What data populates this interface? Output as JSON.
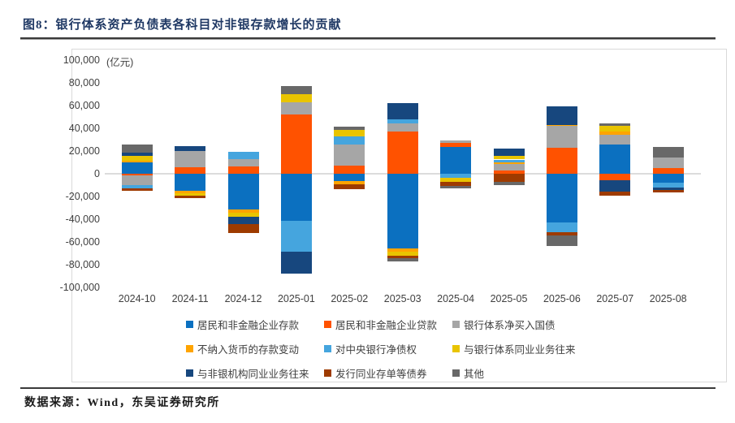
{
  "page": {
    "title": "图8：银行体系资产负债表各科目对非银存款增长的贡献",
    "source": "数据来源：Wind，东吴证券研究所",
    "unit_label": "(亿元)"
  },
  "chart_data": {
    "type": "bar",
    "stacked": true,
    "title": "银行体系资产负债表各科目对非银存款增长的贡献",
    "unit": "亿元",
    "xlabel": "",
    "ylabel": "亿元",
    "ylim": [
      -100000,
      100000
    ],
    "ytick_step": 20000,
    "grid": false,
    "legend_position": "bottom",
    "categories": [
      "2024-10",
      "2024-11",
      "2024-12",
      "2025-01",
      "2025-02",
      "2025-03",
      "2025-04",
      "2025-05",
      "2025-06",
      "2025-07",
      "2025-08"
    ],
    "series": [
      {
        "name": "居民和非金融企业存款",
        "color": "#0b70c0",
        "values": [
          10000,
          -15200,
          -31600,
          -41200,
          -6700,
          -65500,
          23600,
          0,
          -43100,
          25500,
          -7900
        ]
      },
      {
        "name": "居民和非金融企业贷款",
        "color": "#ff5200",
        "values": [
          -1200,
          6000,
          6700,
          52400,
          7100,
          36900,
          3600,
          2900,
          22900,
          -5500,
          5000
        ]
      },
      {
        "name": "银行体系净买入国债",
        "color": "#a6a6a6",
        "values": [
          -9000,
          13800,
          6400,
          10700,
          18600,
          7100,
          2400,
          5700,
          19000,
          8600,
          9000
        ]
      },
      {
        "name": "不纳入货币的存款变动",
        "color": "#ffa400",
        "values": [
          1700,
          -1900,
          -2400,
          0,
          -2600,
          -3300,
          0,
          1500,
          1200,
          2900,
          0
        ]
      },
      {
        "name": "对中央银行净债权",
        "color": "#45a5de",
        "values": [
          -2900,
          0,
          6400,
          -27400,
          7100,
          4100,
          -3600,
          2400,
          -8300,
          0,
          -4300
        ]
      },
      {
        "name": "与银行体系同业业务往来",
        "color": "#e9c400",
        "values": [
          4300,
          -2400,
          -3600,
          7100,
          6000,
          -3100,
          -3800,
          3300,
          0,
          4800,
          0
        ]
      },
      {
        "name": "与非银机构同业业务往来",
        "color": "#17477e",
        "values": [
          2900,
          4800,
          -6400,
          -19500,
          0,
          13800,
          0,
          6200,
          16200,
          -10500,
          -2400
        ]
      },
      {
        "name": "发行同业存单等债券",
        "color": "#9e3b00",
        "values": [
          -1800,
          -1900,
          -8300,
          0,
          -4000,
          -2400,
          -3300,
          -7100,
          -2600,
          -3100,
          -1600
        ]
      },
      {
        "name": "其他",
        "color": "#686868",
        "values": [
          6700,
          0,
          0,
          7100,
          2900,
          -3100,
          -2400,
          -2900,
          -9300,
          2400,
          9500
        ]
      }
    ]
  }
}
